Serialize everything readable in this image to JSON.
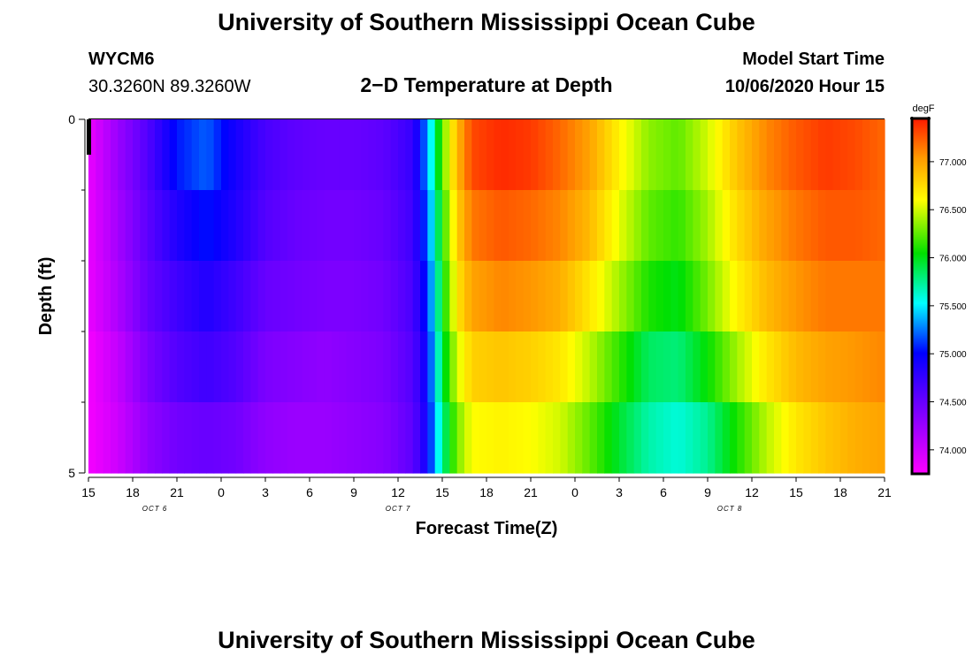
{
  "header": {
    "title": "University of Southern Mississippi Ocean Cube",
    "station_id": "WYCM6",
    "coordinates": "30.3260N 89.3260W",
    "model_start_label": "Model Start Time",
    "model_start_value": "10/06/2020 Hour 15"
  },
  "footer": {
    "title": "University of Southern Mississippi Ocean Cube"
  },
  "chart_data": {
    "type": "heatmap",
    "title": "2−D Temperature at Depth",
    "xlabel": "Forecast Time(Z)",
    "ylabel": "Depth (ft)",
    "colorbar_label": "degF",
    "x_tick_labels": [
      "15",
      "18",
      "21",
      "0",
      "3",
      "6",
      "9",
      "12",
      "15",
      "18",
      "21",
      "0",
      "3",
      "6",
      "9",
      "12",
      "15",
      "18",
      "21"
    ],
    "x_hours": [
      0,
      54
    ],
    "date_labels": [
      {
        "label": "OCT 6",
        "hour": 4.5
      },
      {
        "label": "OCT 7",
        "hour": 21
      },
      {
        "label": "OCT 8",
        "hour": 43.5
      }
    ],
    "y_tick_labels": [
      "0",
      "5"
    ],
    "ylim": [
      0,
      5
    ],
    "depth_levels": [
      0,
      1,
      2,
      3,
      4,
      5
    ],
    "colorbar_ticks": [
      74.0,
      74.5,
      75.0,
      75.5,
      76.0,
      76.5,
      77.0
    ],
    "colorbar_tick_labels": [
      "74.000",
      "74.500",
      "75.000",
      "75.500",
      "76.000",
      "76.500",
      "77.000"
    ],
    "color_range": [
      73.75,
      77.45
    ],
    "key_hours": [
      0,
      2,
      4,
      6,
      8,
      10,
      12,
      14,
      16,
      18,
      20,
      22,
      23,
      24,
      25,
      26,
      28,
      30,
      32,
      34,
      36,
      38,
      40,
      42,
      44,
      46,
      48,
      50,
      52,
      54
    ],
    "temperature_rows": [
      [
        73.85,
        74.25,
        74.6,
        75.05,
        75.2,
        74.9,
        74.65,
        74.55,
        74.5,
        74.5,
        74.55,
        74.75,
        75.3,
        76.25,
        76.9,
        77.3,
        77.4,
        77.35,
        77.2,
        77.0,
        76.65,
        76.35,
        76.25,
        76.5,
        76.85,
        77.1,
        77.25,
        77.35,
        77.3,
        77.2
      ],
      [
        73.85,
        74.2,
        74.55,
        74.85,
        75.05,
        74.85,
        74.6,
        74.5,
        74.45,
        74.45,
        74.5,
        74.7,
        75.2,
        76.1,
        76.8,
        77.15,
        77.25,
        77.2,
        77.1,
        76.9,
        76.55,
        76.25,
        76.15,
        76.4,
        76.75,
        77.0,
        77.15,
        77.25,
        77.25,
        77.2
      ],
      [
        73.85,
        74.15,
        74.5,
        74.7,
        74.85,
        74.7,
        74.5,
        74.45,
        74.4,
        74.4,
        74.45,
        74.65,
        75.1,
        76.0,
        76.7,
        77.0,
        77.1,
        77.05,
        76.95,
        76.7,
        76.4,
        76.1,
        76.0,
        76.3,
        76.65,
        76.9,
        77.05,
        77.15,
        77.15,
        77.15
      ],
      [
        73.8,
        74.05,
        74.4,
        74.6,
        74.7,
        74.6,
        74.4,
        74.35,
        74.3,
        74.35,
        74.4,
        74.6,
        75.0,
        75.9,
        76.5,
        76.8,
        76.85,
        76.8,
        76.7,
        76.45,
        76.15,
        75.85,
        75.8,
        76.05,
        76.4,
        76.7,
        76.9,
        77.0,
        77.05,
        77.1
      ],
      [
        73.8,
        74.0,
        74.3,
        74.45,
        74.5,
        74.45,
        74.3,
        74.25,
        74.25,
        74.3,
        74.35,
        74.55,
        74.95,
        75.75,
        76.3,
        76.6,
        76.65,
        76.6,
        76.5,
        76.25,
        75.95,
        75.7,
        75.6,
        75.75,
        76.1,
        76.45,
        76.7,
        76.85,
        76.95,
        77.0
      ]
    ]
  }
}
